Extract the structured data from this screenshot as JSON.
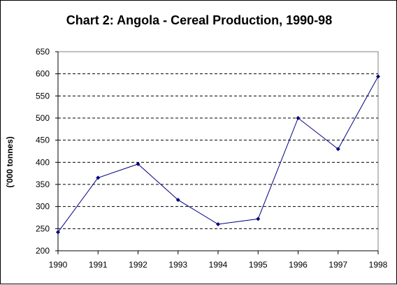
{
  "chart_data": {
    "type": "line",
    "title": "Chart 2: Angola - Cereal Production, 1990-98",
    "xlabel": "",
    "ylabel": "('000 tonnes)",
    "x": [
      "1990",
      "1991",
      "1992",
      "1993",
      "1994",
      "1995",
      "1996",
      "1997",
      "1998"
    ],
    "series": [
      {
        "values": [
          242,
          365,
          396,
          315,
          260,
          272,
          500,
          430,
          594
        ]
      }
    ],
    "ylim": [
      200,
      650
    ],
    "yticks": [
      "200",
      "250",
      "300",
      "350",
      "400",
      "450",
      "500",
      "550",
      "600",
      "650"
    ],
    "grid": "horizontal dashed",
    "legend": "none",
    "colors": {
      "line": "#00007f",
      "marker": "#00007f",
      "grid": "#000000",
      "axis": "#808080"
    }
  }
}
